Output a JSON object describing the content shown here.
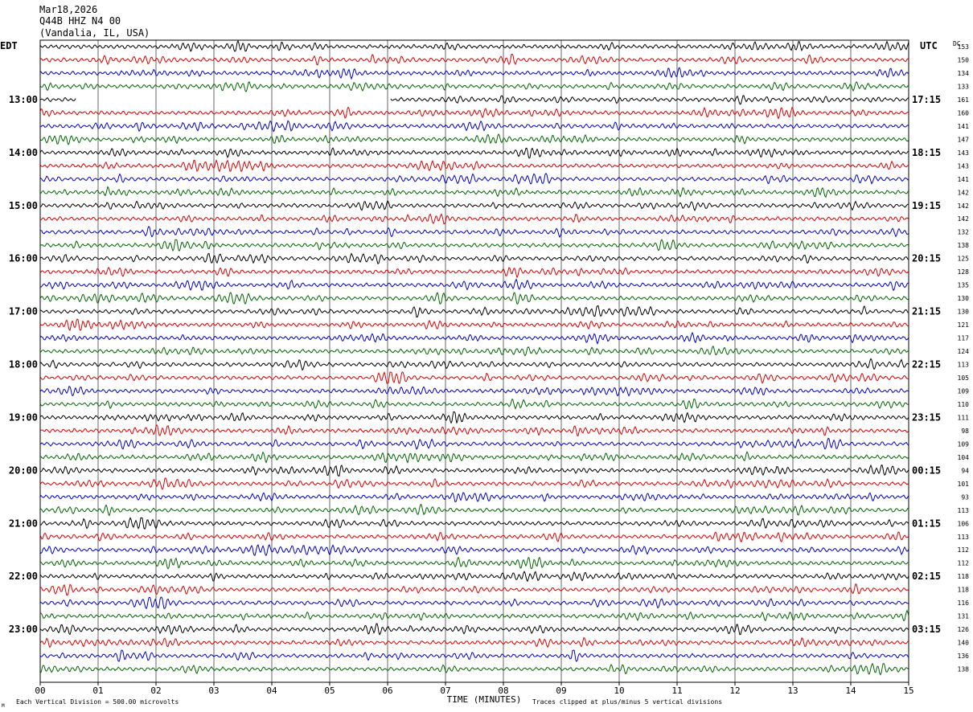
{
  "header": {
    "date": "Mar18,2026",
    "station": "Q44B HHZ N4 00",
    "location": "(Vandalia, IL, USA)"
  },
  "labels": {
    "left_tz": "EDT",
    "right_tz": "UTC",
    "dc_label": "DC",
    "xlabel": "TIME (MINUTES)",
    "scale_note": "Each Vertical Division =  500.00 microvolts",
    "clip_note": "Traces clipped at plus/minus 5 vertical divisions",
    "corner_mark": "M"
  },
  "chart_data": {
    "type": "line",
    "title": "",
    "xlabel": "TIME (MINUTES)",
    "xlim": [
      0,
      15
    ],
    "x_ticks": [
      "00",
      "01",
      "02",
      "03",
      "04",
      "05",
      "06",
      "07",
      "08",
      "09",
      "10",
      "11",
      "12",
      "13",
      "14",
      "15"
    ],
    "trace_colors": [
      "#000000",
      "#dd0000",
      "#0000cc",
      "#006600"
    ],
    "traces_per_hour": 4,
    "left_hour_labels": [
      "13:00",
      "14:00",
      "15:00",
      "16:00",
      "17:00",
      "18:00",
      "19:00",
      "20:00",
      "21:00",
      "22:00",
      "23:00"
    ],
    "right_hour_labels": [
      "17:15",
      "18:15",
      "19:15",
      "20:15",
      "21:15",
      "22:15",
      "23:15",
      "00:15",
      "01:15",
      "02:15",
      "03:15"
    ],
    "dc_offsets": [
      153,
      150,
      134,
      133,
      161,
      160,
      141,
      147,
      143,
      143,
      141,
      142,
      142,
      142,
      132,
      138,
      125,
      128,
      135,
      130,
      130,
      121,
      117,
      124,
      113,
      105,
      109,
      110,
      111,
      98,
      109,
      104,
      94,
      101,
      93,
      113,
      106,
      113,
      112,
      112,
      118,
      118,
      116,
      131,
      126,
      140,
      136,
      138
    ],
    "data_gap": {
      "trace_index": 4,
      "start_minute": 0.62,
      "end_minute": 6.05
    }
  }
}
